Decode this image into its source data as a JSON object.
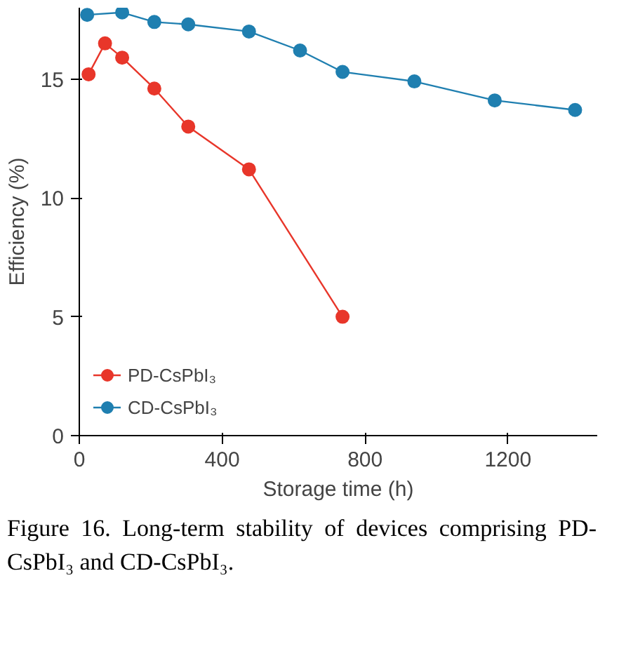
{
  "chart_data": {
    "type": "line",
    "xlabel": "Storage time (h)",
    "ylabel": "Efficiency (%)",
    "x": [
      26,
      72,
      120,
      210,
      305,
      475,
      737
    ],
    "series": [
      {
        "name": "PD-CsPbI₃",
        "color": "#e8362a",
        "values": [
          15.2,
          16.5,
          15.9,
          14.6,
          13.0,
          11.2,
          5.0
        ]
      },
      {
        "name": "CD-CsPbI₃",
        "color": "#1f7fb0",
        "x": [
          22,
          120,
          210,
          305,
          475,
          618,
          737,
          938,
          1163,
          1388
        ],
        "values": [
          17.7,
          17.8,
          17.4,
          17.3,
          17.0,
          16.2,
          15.3,
          14.9,
          14.1,
          13.7
        ]
      }
    ],
    "xlim": [
      0,
      1450
    ],
    "ylim": [
      0,
      18
    ],
    "xticks": [
      0,
      400,
      800,
      1200
    ],
    "yticks": [
      0,
      5,
      10,
      15
    ],
    "marker": "circle",
    "line_style": "solid",
    "legend": "bottom left",
    "grid": false,
    "annotations": [
      "Figure 16. Long-term stability of devices comprising PD-CsPbI₃ and CD-CsPbI₃."
    ]
  }
}
